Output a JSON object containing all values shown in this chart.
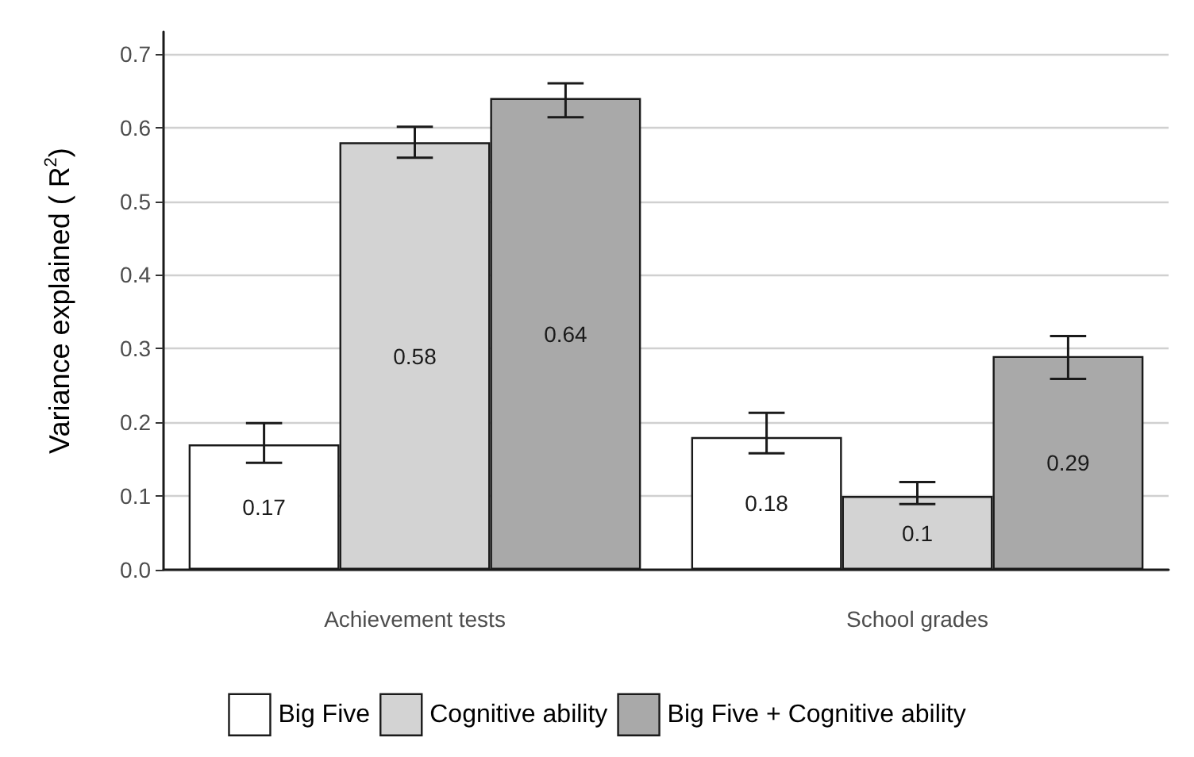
{
  "chart_data": {
    "type": "bar",
    "ylabel": "Variance explained ( R$^{2}$)",
    "categories": [
      "Achievement tests",
      "School grades"
    ],
    "series": [
      {
        "name": "Big Five",
        "color": "#ffffff",
        "values": [
          0.17,
          0.18
        ],
        "errors": [
          [
            0.145,
            0.199
          ],
          [
            0.158,
            0.213
          ]
        ]
      },
      {
        "name": "Cognitive ability",
        "color": "#d3d3d3",
        "values": [
          0.58,
          0.1
        ],
        "errors": [
          [
            0.559,
            0.601
          ],
          [
            0.089,
            0.119
          ]
        ]
      },
      {
        "name": "Big Five + Cognitive ability",
        "color": "#a9a9a9",
        "values": [
          0.64,
          0.29
        ],
        "errors": [
          [
            0.614,
            0.66
          ],
          [
            0.259,
            0.317
          ]
        ]
      }
    ],
    "ylim": [
      0,
      0.73
    ],
    "yticks": [
      "0.0",
      0.1,
      0.2,
      0.3,
      0.4,
      0.5,
      0.6,
      0.7
    ],
    "grid": "y",
    "legend": "bottom",
    "data_labels": true
  }
}
